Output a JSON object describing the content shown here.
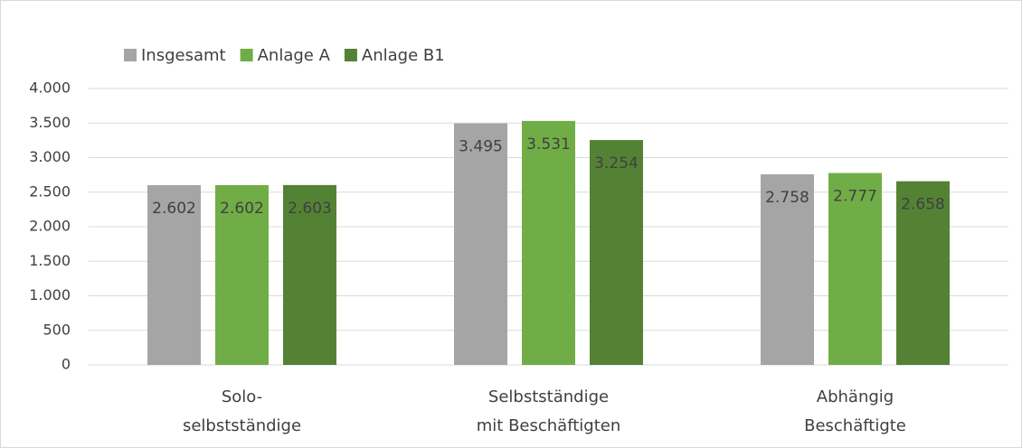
{
  "chart_data": {
    "type": "bar",
    "categories": [
      [
        "Solo-",
        "selbstständige"
      ],
      [
        "Selbstständige",
        "mit Beschäftigten"
      ],
      [
        "Abhängig",
        "Beschäftigte"
      ]
    ],
    "series": [
      {
        "name": "Insgesamt",
        "color": "#a5a5a5",
        "values": [
          2602,
          3495,
          2758
        ],
        "value_labels": [
          "2.602",
          "3.495",
          "2.758"
        ]
      },
      {
        "name": "Anlage A",
        "color": "#70ad47",
        "values": [
          2602,
          3531,
          2777
        ],
        "value_labels": [
          "2.602",
          "3.531",
          "2.777"
        ]
      },
      {
        "name": "Anlage B1",
        "color": "#548235",
        "values": [
          2603,
          3254,
          2658
        ],
        "value_labels": [
          "2.603",
          "3.254",
          "2.658"
        ]
      }
    ],
    "ylim": [
      0,
      4000
    ],
    "yticks": [
      0,
      500,
      {
        "value": 1000,
        "label": "1.000"
      },
      {
        "value": 1500,
        "label": "1.500"
      },
      {
        "value": 2000,
        "label": "2.000"
      },
      {
        "value": 2500,
        "label": "2.500"
      },
      {
        "value": 3000,
        "label": "3.000"
      },
      {
        "value": 3500,
        "label": "3.500"
      },
      {
        "value": 4000,
        "label": "4.000"
      }
    ],
    "grid": true,
    "legend": "top-left"
  }
}
